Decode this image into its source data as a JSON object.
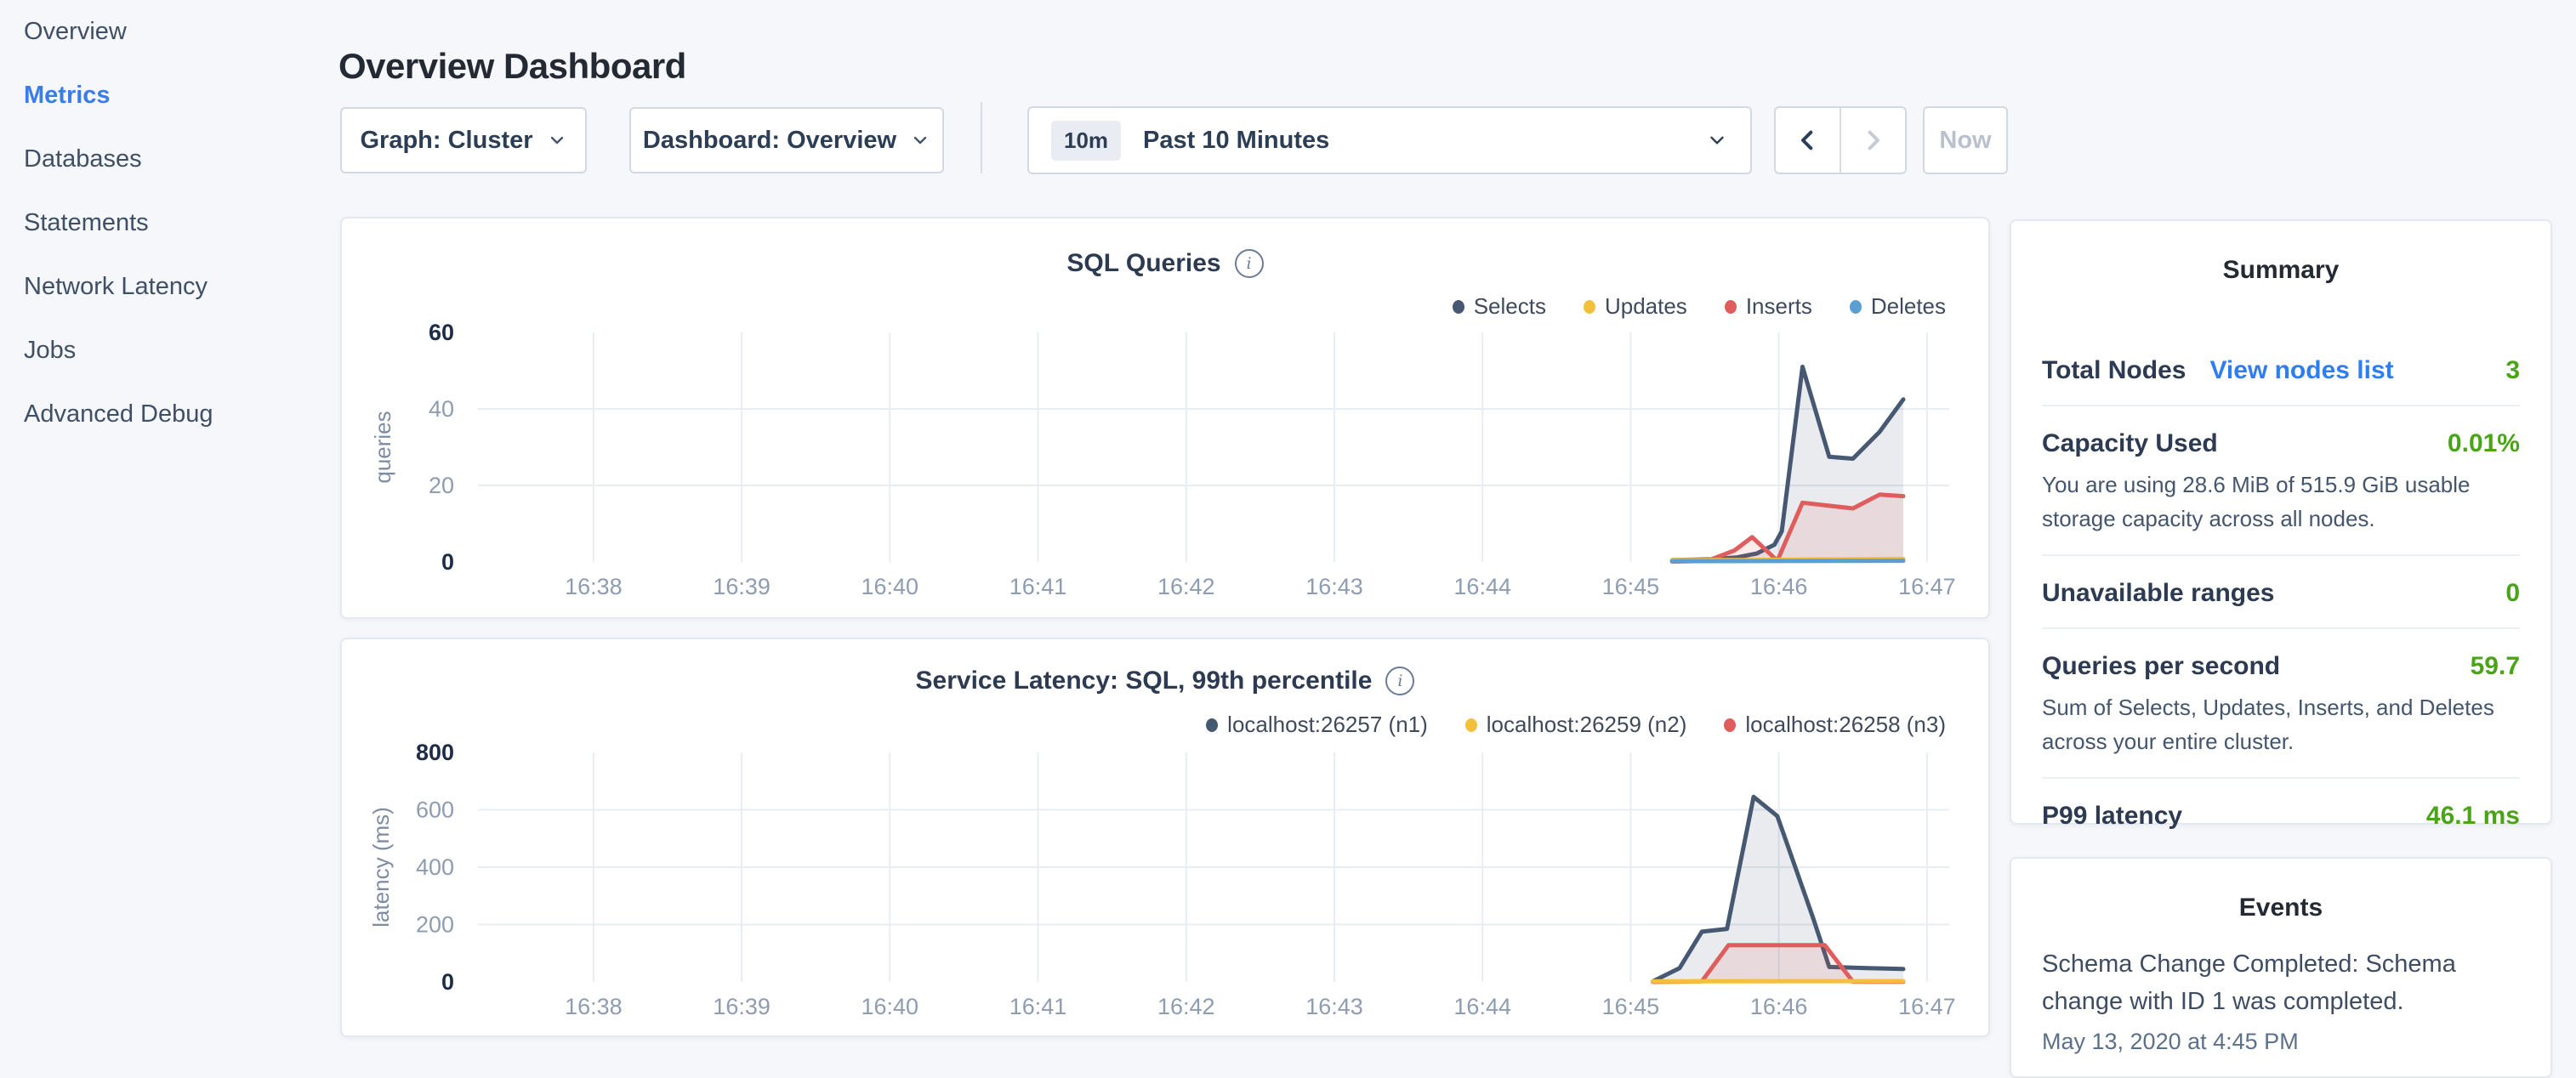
{
  "sidebar": {
    "items": [
      {
        "label": "Overview",
        "active": false
      },
      {
        "label": "Metrics",
        "active": true
      },
      {
        "label": "Databases",
        "active": false
      },
      {
        "label": "Statements",
        "active": false
      },
      {
        "label": "Network Latency",
        "active": false
      },
      {
        "label": "Jobs",
        "active": false
      },
      {
        "label": "Advanced Debug",
        "active": false
      }
    ]
  },
  "header": {
    "title": "Overview Dashboard"
  },
  "controls": {
    "graph_dropdown": {
      "label": "Graph: Cluster"
    },
    "dashboard_dropdown": {
      "label": "Dashboard: Overview"
    },
    "time_window": {
      "badge": "10m",
      "label": "Past 10 Minutes"
    },
    "now_button": "Now"
  },
  "summary": {
    "title": "Summary",
    "rows": [
      {
        "label": "Total Nodes",
        "link": "View nodes list",
        "value": "3"
      },
      {
        "label": "Capacity Used",
        "value": "0.01%",
        "desc": "You are using 28.6 MiB of 515.9 GiB usable storage capacity across all nodes."
      },
      {
        "label": "Unavailable ranges",
        "value": "0"
      },
      {
        "label": "Queries per second",
        "value": "59.7",
        "desc": "Sum of Selects, Updates, Inserts, and Deletes across your entire cluster."
      },
      {
        "label": "P99 latency",
        "value": "46.1 ms"
      }
    ]
  },
  "events": {
    "title": "Events",
    "items": [
      {
        "text": "Schema Change Completed: Schema change with ID 1 was completed.",
        "time": "May 13, 2020 at 4:45 PM"
      }
    ]
  },
  "colors": {
    "accent_blue": "#3a7ce8",
    "link_blue": "#2f7ef0",
    "value_green": "#49a417",
    "series_navy": "#475872",
    "series_yellow": "#f2c03c",
    "series_red": "#df5d5d",
    "series_blue": "#5a9fd4"
  },
  "chart_data": [
    {
      "type": "line",
      "title": "SQL Queries",
      "ylabel": "queries",
      "ylim": [
        0,
        60
      ],
      "yticks": [
        0,
        20,
        40,
        60
      ],
      "x_domain": [
        37.22,
        47.15
      ],
      "x_ticks": [
        {
          "v": 38,
          "label": "16:38"
        },
        {
          "v": 39,
          "label": "16:39"
        },
        {
          "v": 40,
          "label": "16:40"
        },
        {
          "v": 41,
          "label": "16:41"
        },
        {
          "v": 42,
          "label": "16:42"
        },
        {
          "v": 43,
          "label": "16:43"
        },
        {
          "v": 44,
          "label": "16:44"
        },
        {
          "v": 45,
          "label": "16:45"
        },
        {
          "v": 46,
          "label": "16:46"
        },
        {
          "v": 47,
          "label": "16:47"
        }
      ],
      "legend_position": "top-right",
      "grid": true,
      "legend": [
        {
          "name": "Selects",
          "color": "#475872"
        },
        {
          "name": "Updates",
          "color": "#f2c03c"
        },
        {
          "name": "Inserts",
          "color": "#df5d5d"
        },
        {
          "name": "Deletes",
          "color": "#5a9fd4"
        }
      ],
      "series": [
        {
          "name": "Selects",
          "color": "#475872",
          "points": [
            [
              45.28,
              0.5
            ],
            [
              45.55,
              0.7
            ],
            [
              45.72,
              1.2
            ],
            [
              45.85,
              2.2
            ],
            [
              45.97,
              4.5
            ],
            [
              46.02,
              8
            ],
            [
              46.16,
              51
            ],
            [
              46.34,
              27.5
            ],
            [
              46.5,
              27
            ],
            [
              46.68,
              34
            ],
            [
              46.84,
              42.5
            ]
          ]
        },
        {
          "name": "Inserts",
          "color": "#df5d5d",
          "points": [
            [
              45.28,
              0.1
            ],
            [
              45.52,
              0.3
            ],
            [
              45.7,
              3
            ],
            [
              45.82,
              6.5
            ],
            [
              45.99,
              0.3
            ],
            [
              46.16,
              15.5
            ],
            [
              46.34,
              14.7
            ],
            [
              46.5,
              14
            ],
            [
              46.68,
              17.6
            ],
            [
              46.84,
              17.2
            ]
          ]
        },
        {
          "name": "Updates",
          "color": "#f2c03c",
          "points": [
            [
              45.28,
              0.5
            ],
            [
              45.8,
              0.5
            ],
            [
              46.3,
              0.7
            ],
            [
              46.84,
              0.8
            ]
          ]
        },
        {
          "name": "Deletes",
          "color": "#5a9fd4",
          "points": [
            [
              45.28,
              0.2
            ],
            [
              46.84,
              0.3
            ]
          ]
        }
      ]
    },
    {
      "type": "line",
      "title": "Service Latency: SQL, 99th percentile",
      "ylabel": "latency (ms)",
      "ylim": [
        0,
        800
      ],
      "yticks": [
        0,
        200,
        400,
        600,
        800
      ],
      "x_domain": [
        37.22,
        47.15
      ],
      "x_ticks": [
        {
          "v": 38,
          "label": "16:38"
        },
        {
          "v": 39,
          "label": "16:39"
        },
        {
          "v": 40,
          "label": "16:40"
        },
        {
          "v": 41,
          "label": "16:41"
        },
        {
          "v": 42,
          "label": "16:42"
        },
        {
          "v": 43,
          "label": "16:43"
        },
        {
          "v": 44,
          "label": "16:44"
        },
        {
          "v": 45,
          "label": "16:45"
        },
        {
          "v": 46,
          "label": "16:46"
        },
        {
          "v": 47,
          "label": "16:47"
        }
      ],
      "legend_position": "top-right",
      "grid": true,
      "legend": [
        {
          "name": "localhost:26257 (n1)",
          "color": "#475872"
        },
        {
          "name": "localhost:26259 (n2)",
          "color": "#f2c03c"
        },
        {
          "name": "localhost:26258 (n3)",
          "color": "#df5d5d"
        }
      ],
      "series": [
        {
          "name": "localhost:26257 (n1)",
          "color": "#475872",
          "points": [
            [
              45.15,
              2
            ],
            [
              45.33,
              48
            ],
            [
              45.48,
              175
            ],
            [
              45.65,
              185
            ],
            [
              45.83,
              645
            ],
            [
              45.99,
              578
            ],
            [
              46.23,
              225
            ],
            [
              46.34,
              52
            ],
            [
              46.6,
              48
            ],
            [
              46.84,
              45
            ]
          ]
        },
        {
          "name": "localhost:26258 (n3)",
          "color": "#df5d5d",
          "points": [
            [
              45.15,
              0
            ],
            [
              45.48,
              2
            ],
            [
              45.66,
              128
            ],
            [
              46.31,
              128
            ],
            [
              46.5,
              1
            ],
            [
              46.84,
              1
            ]
          ]
        },
        {
          "name": "localhost:26259 (n2)",
          "color": "#f2c03c",
          "points": [
            [
              45.15,
              2
            ],
            [
              46.84,
              3
            ]
          ]
        }
      ]
    }
  ]
}
